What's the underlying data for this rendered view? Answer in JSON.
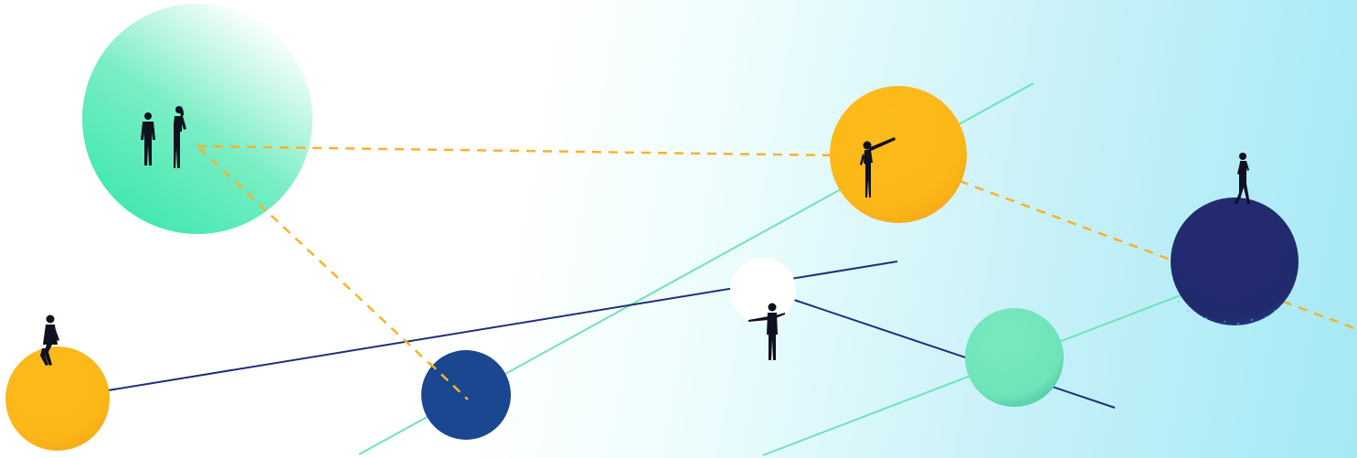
{
  "illustration": {
    "description_icons": [
      "person-pair-icon",
      "person-telescope-icon",
      "person-sitting-icon",
      "person-standing-icon",
      "person-walking-icon"
    ]
  },
  "colors": {
    "background_light": "#ffffff",
    "background_cyan": "#a4e9f6",
    "mint": "#2ee6a6",
    "mint_light": "#72e8bd",
    "yellow": "#fbb817",
    "navy": "#21296f",
    "blue": "#1a478f",
    "white": "#ffffff",
    "line_navy": "#1f2f7a",
    "line_mint": "#6fe3b7",
    "dashed_yellow": "#f7b32b",
    "figure": "#0f1020"
  }
}
